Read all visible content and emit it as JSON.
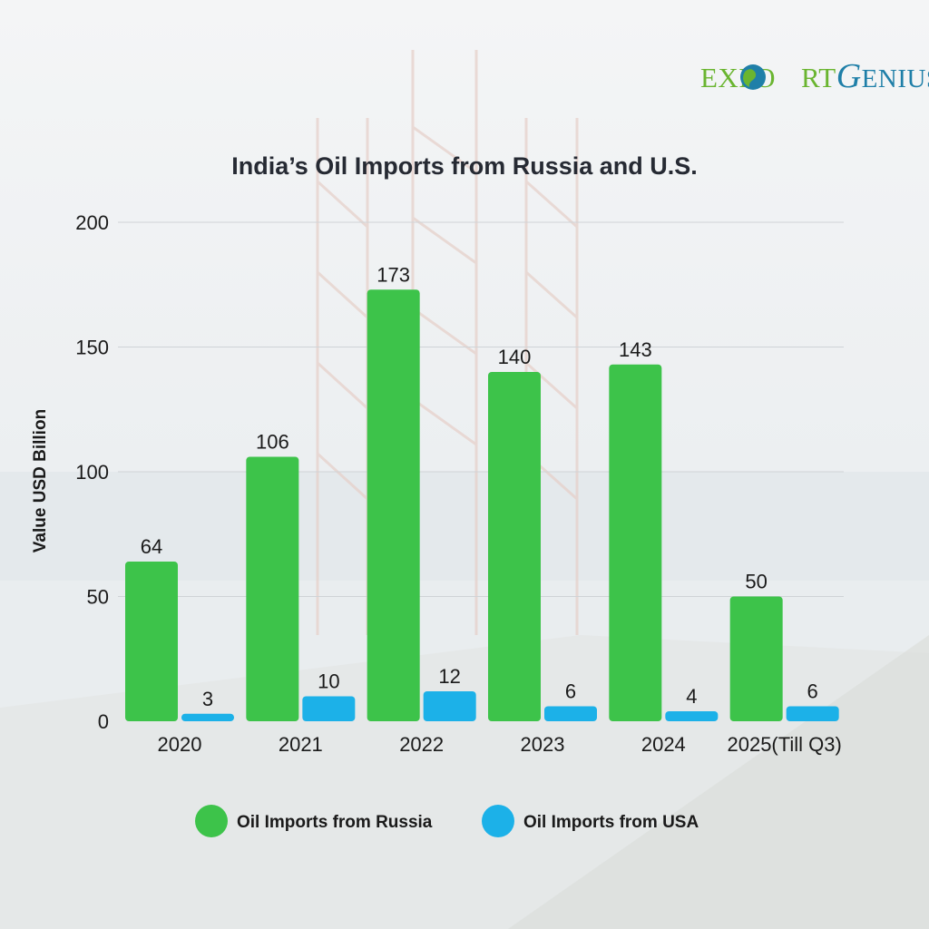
{
  "brand": {
    "part1": "EXPO",
    "part2": "RT",
    "part3": "G",
    "part4": "ENIUS",
    "color_green": "#6ab530",
    "color_blue": "#1f7fa8"
  },
  "chart_data": {
    "type": "bar",
    "title": "India’s Oil Imports from Russia and U.S.",
    "xlabel": "",
    "ylabel": "Value USD Billion",
    "ylim": [
      0,
      200
    ],
    "yticks": [
      0,
      50,
      100,
      150,
      200
    ],
    "grid": true,
    "legend_position": "bottom",
    "categories": [
      "2020",
      "2021",
      "2022",
      "2023",
      "2024",
      "2025(Till Q3)"
    ],
    "series": [
      {
        "name": "Oil Imports from Russia",
        "color": "#3dc34a",
        "values": [
          64,
          106,
          173,
          140,
          143,
          50
        ]
      },
      {
        "name": "Oil Imports from USA",
        "color": "#1cb1e8",
        "values": [
          3,
          10,
          12,
          6,
          4,
          6
        ]
      }
    ]
  }
}
